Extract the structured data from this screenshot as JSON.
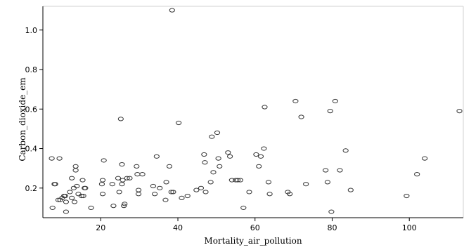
{
  "chart_data": {
    "type": "scatter",
    "xlabel": "Mortality_air_pollution",
    "ylabel": "Carbon_dioxide_em",
    "xlim": [
      5,
      114
    ],
    "ylim": [
      0.05,
      1.12
    ],
    "x_ticks": [
      20,
      40,
      60,
      80,
      100
    ],
    "y_ticks": [
      0.2,
      0.4,
      0.6,
      0.8,
      1.0
    ],
    "x_tick_labels": [
      "20",
      "40",
      "60",
      "80",
      "100"
    ],
    "y_tick_labels": [
      "0.2",
      "0.4",
      "0.6",
      "0.8",
      "1.0"
    ],
    "grid": false,
    "marker": "hollow-ellipse",
    "marker_color": "#333333",
    "points": [
      [
        7.3,
        0.35
      ],
      [
        8.0,
        0.22
      ],
      [
        8.2,
        0.22
      ],
      [
        7.5,
        0.1
      ],
      [
        9.3,
        0.35
      ],
      [
        9.0,
        0.14
      ],
      [
        9.5,
        0.14
      ],
      [
        10.0,
        0.15
      ],
      [
        10.5,
        0.16
      ],
      [
        10.8,
        0.16
      ],
      [
        11.0,
        0.13
      ],
      [
        11.0,
        0.08
      ],
      [
        12.0,
        0.18
      ],
      [
        12.5,
        0.15
      ],
      [
        12.5,
        0.25
      ],
      [
        13.0,
        0.2
      ],
      [
        13.2,
        0.13
      ],
      [
        13.5,
        0.31
      ],
      [
        13.5,
        0.29
      ],
      [
        13.8,
        0.21
      ],
      [
        14.2,
        0.17
      ],
      [
        15.0,
        0.16
      ],
      [
        15.3,
        0.24
      ],
      [
        15.5,
        0.16
      ],
      [
        15.8,
        0.2
      ],
      [
        16.0,
        0.2
      ],
      [
        17.5,
        0.1
      ],
      [
        20.3,
        0.22
      ],
      [
        20.5,
        0.17
      ],
      [
        20.5,
        0.24
      ],
      [
        20.8,
        0.34
      ],
      [
        23.0,
        0.22
      ],
      [
        23.3,
        0.11
      ],
      [
        24.5,
        0.25
      ],
      [
        24.8,
        0.18
      ],
      [
        25.2,
        0.55
      ],
      [
        25.5,
        0.32
      ],
      [
        25.5,
        0.22
      ],
      [
        25.7,
        0.24
      ],
      [
        26.0,
        0.11
      ],
      [
        26.2,
        0.12
      ],
      [
        26.8,
        0.25
      ],
      [
        27.5,
        0.25
      ],
      [
        29.3,
        0.31
      ],
      [
        29.5,
        0.27
      ],
      [
        29.8,
        0.19
      ],
      [
        29.8,
        0.17
      ],
      [
        30.8,
        0.27
      ],
      [
        33.6,
        0.21
      ],
      [
        34.0,
        0.17
      ],
      [
        34.5,
        0.36
      ],
      [
        35.3,
        0.2
      ],
      [
        36.8,
        0.14
      ],
      [
        37.0,
        0.23
      ],
      [
        37.8,
        0.31
      ],
      [
        38.3,
        0.18
      ],
      [
        38.5,
        1.1
      ],
      [
        38.8,
        0.18
      ],
      [
        40.2,
        0.53
      ],
      [
        41.0,
        0.15
      ],
      [
        42.5,
        0.16
      ],
      [
        44.8,
        0.19
      ],
      [
        46.0,
        0.2
      ],
      [
        46.8,
        0.37
      ],
      [
        47.0,
        0.33
      ],
      [
        47.2,
        0.18
      ],
      [
        48.5,
        0.23
      ],
      [
        48.8,
        0.46
      ],
      [
        49.2,
        0.28
      ],
      [
        50.2,
        0.48
      ],
      [
        50.5,
        0.35
      ],
      [
        50.8,
        0.31
      ],
      [
        53.0,
        0.38
      ],
      [
        53.5,
        0.36
      ],
      [
        54.0,
        0.24
      ],
      [
        55.0,
        0.24
      ],
      [
        55.5,
        0.24
      ],
      [
        56.2,
        0.24
      ],
      [
        57.0,
        0.1
      ],
      [
        58.5,
        0.18
      ],
      [
        60.3,
        0.37
      ],
      [
        61.0,
        0.31
      ],
      [
        61.5,
        0.36
      ],
      [
        62.3,
        0.4
      ],
      [
        62.5,
        0.61
      ],
      [
        63.5,
        0.23
      ],
      [
        63.8,
        0.17
      ],
      [
        68.5,
        0.18
      ],
      [
        69.0,
        0.17
      ],
      [
        70.5,
        0.64
      ],
      [
        72.0,
        0.56
      ],
      [
        73.2,
        0.22
      ],
      [
        78.3,
        0.29
      ],
      [
        78.8,
        0.23
      ],
      [
        79.5,
        0.59
      ],
      [
        79.8,
        0.08
      ],
      [
        80.8,
        0.64
      ],
      [
        82.0,
        0.29
      ],
      [
        83.5,
        0.39
      ],
      [
        84.8,
        0.19
      ],
      [
        99.3,
        0.16
      ],
      [
        102.0,
        0.27
      ],
      [
        104.0,
        0.35
      ],
      [
        113.0,
        0.59
      ]
    ]
  }
}
